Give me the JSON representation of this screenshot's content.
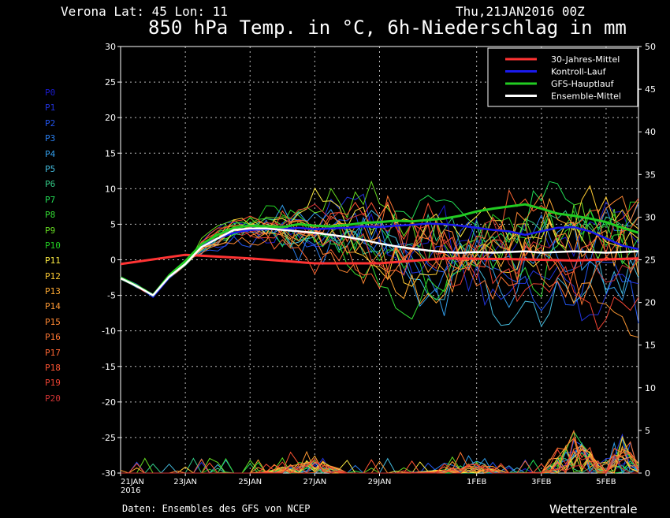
{
  "header": {
    "station": "Verona   Lat: 45 Lon: 11",
    "run": "Thu,21JAN2016 00Z",
    "title": "850 hPa Temp. in °C, 6h-Niederschlag in mm"
  },
  "footer": {
    "source": "Daten: Ensembles des GFS von NCEP",
    "brand": "Wetterzentrale"
  },
  "members": [
    {
      "label": "P0",
      "color": "#1a1acc"
    },
    {
      "label": "P1",
      "color": "#2233dd"
    },
    {
      "label": "P2",
      "color": "#2255ee"
    },
    {
      "label": "P3",
      "color": "#2a7ff0"
    },
    {
      "label": "P4",
      "color": "#33a0ee"
    },
    {
      "label": "P5",
      "color": "#44bbdd"
    },
    {
      "label": "P6",
      "color": "#33cc88"
    },
    {
      "label": "P7",
      "color": "#22dd55"
    },
    {
      "label": "P8",
      "color": "#33dd33"
    },
    {
      "label": "P9",
      "color": "#66dd22"
    },
    {
      "label": "P10",
      "color": "#22cc22"
    },
    {
      "label": "P11",
      "color": "#ffee44"
    },
    {
      "label": "P12",
      "color": "#ffcc33"
    },
    {
      "label": "P13",
      "color": "#ffaa33"
    },
    {
      "label": "P14",
      "color": "#ff9933"
    },
    {
      "label": "P15",
      "color": "#ff8833"
    },
    {
      "label": "P16",
      "color": "#ff7733"
    },
    {
      "label": "P17",
      "color": "#ff6633"
    },
    {
      "label": "P18",
      "color": "#ff5533"
    },
    {
      "label": "P19",
      "color": "#ee4433"
    },
    {
      "label": "P20",
      "color": "#cc3333"
    }
  ],
  "chart_data": {
    "type": "line",
    "x_unit": "days from 21JAN2016 00Z",
    "xlim": [
      0,
      16
    ],
    "ylim": [
      -30,
      30
    ],
    "y2lim": [
      0,
      50
    ],
    "ylabel_left": "",
    "ylabel_right": "",
    "grid": true,
    "legend_position": "top-right",
    "x_ticks": [
      {
        "x": 0,
        "label": "21JAN",
        "sub": "2016"
      },
      {
        "x": 2,
        "label": "23JAN"
      },
      {
        "x": 4,
        "label": "25JAN"
      },
      {
        "x": 6,
        "label": "27JAN"
      },
      {
        "x": 8,
        "label": "29JAN"
      },
      {
        "x": 11,
        "label": "1FEB"
      },
      {
        "x": 13,
        "label": "3FEB"
      },
      {
        "x": 15,
        "label": "5FEB"
      }
    ],
    "y_ticks": [
      30,
      25,
      20,
      15,
      10,
      5,
      0,
      -5,
      -10,
      -15,
      -20,
      -25,
      -30
    ],
    "y2_ticks": [
      50,
      45,
      40,
      35,
      30,
      25,
      20,
      15,
      10,
      5,
      0
    ],
    "series": [
      {
        "name": "30-Jahres-Mittel",
        "color": "#ff3333",
        "width": 3,
        "x": [
          0,
          2,
          4,
          6,
          8,
          10,
          12,
          14,
          16
        ],
        "y": [
          -0.6,
          0.7,
          0.2,
          -0.5,
          -0.5,
          0.2,
          0.1,
          -0.1,
          0.2
        ]
      },
      {
        "name": "Kontroll-Lauf",
        "color": "#1a1aee",
        "width": 2.5,
        "x": [
          0,
          0.5,
          1,
          1.5,
          2,
          2.5,
          3,
          3.5,
          4,
          4.5,
          5,
          5.5,
          6,
          6.5,
          7,
          7.5,
          8,
          8.5,
          9,
          9.5,
          10,
          10.5,
          11,
          11.5,
          12,
          12.5,
          13,
          13.5,
          14,
          14.5,
          15,
          15.5,
          16
        ],
        "y": [
          -2.5,
          -3.5,
          -5.2,
          -2.5,
          -0.5,
          2,
          3,
          3.8,
          4.2,
          4.3,
          4.3,
          4.5,
          4.3,
          4.4,
          4.5,
          4.7,
          4.6,
          4.8,
          4.9,
          5.1,
          5.0,
          4.8,
          4.5,
          4.2,
          4.0,
          3.5,
          4.0,
          4.5,
          4.6,
          4.0,
          3.0,
          2.0,
          1.5
        ]
      },
      {
        "name": "GFS-Hauptlauf",
        "color": "#22cc22",
        "width": 3,
        "x": [
          0,
          0.5,
          1,
          1.5,
          2,
          2.5,
          3,
          3.5,
          4,
          4.5,
          5,
          5.5,
          6,
          6.5,
          7,
          7.5,
          8,
          8.5,
          9,
          9.5,
          10,
          10.5,
          11,
          11.5,
          12,
          12.5,
          13,
          13.5,
          14,
          14.5,
          15,
          15.5,
          16
        ],
        "y": [
          -2.5,
          -3.6,
          -5.0,
          -2.2,
          -0.2,
          2.2,
          3.5,
          4.5,
          4.8,
          4.7,
          4.6,
          5.0,
          4.8,
          4.7,
          4.9,
          5.2,
          5.3,
          5.5,
          5.4,
          5.6,
          5.8,
          6.2,
          6.8,
          7.2,
          7.5,
          7.8,
          7.2,
          6.5,
          6.2,
          5.8,
          5.3,
          4.5,
          3.8
        ]
      },
      {
        "name": "Ensemble-Mittel",
        "color": "#ffffff",
        "width": 2.5,
        "x": [
          0,
          0.5,
          1,
          1.5,
          2,
          2.5,
          3,
          3.5,
          4,
          4.5,
          5,
          5.5,
          6,
          6.5,
          7,
          7.5,
          8,
          8.5,
          9,
          9.5,
          10,
          10.5,
          11,
          11.5,
          12,
          12.5,
          13,
          13.5,
          14,
          14.5,
          15,
          15.5,
          16
        ],
        "y": [
          -2.6,
          -3.7,
          -5.0,
          -2.4,
          -0.6,
          1.8,
          3.0,
          4.2,
          4.4,
          4.4,
          4.2,
          4.0,
          3.8,
          3.5,
          3.2,
          2.8,
          2.3,
          1.9,
          1.6,
          1.3,
          1.1,
          1.0,
          1.1,
          1.0,
          1.1,
          1.2,
          1.0,
          1.1,
          1.2,
          1.1,
          1.0,
          1.1,
          1.2
        ]
      }
    ],
    "precipitation": {
      "axis": "right",
      "x": [
        0,
        2,
        4,
        6,
        7,
        8,
        10,
        11,
        12,
        13,
        13.5,
        14,
        14.5,
        15,
        15.5,
        16
      ],
      "y": [
        0,
        0.2,
        0,
        1.5,
        0.3,
        0.1,
        0.5,
        1.2,
        0.2,
        0.3,
        1.5,
        4.0,
        2.0,
        0.5,
        3.5,
        1.0
      ]
    }
  }
}
